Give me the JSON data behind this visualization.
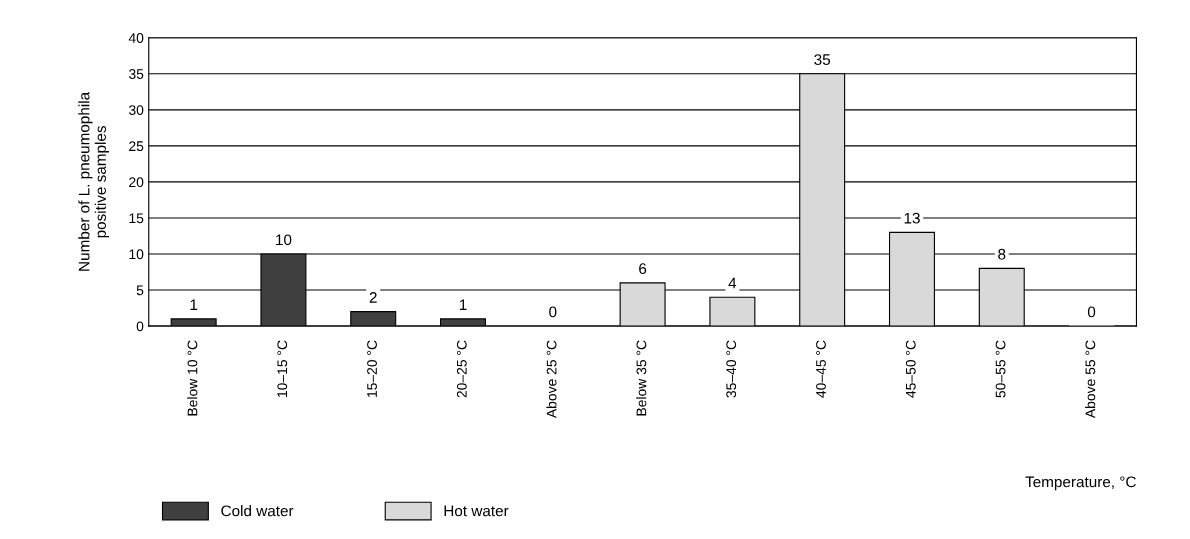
{
  "chart_data": {
    "type": "bar",
    "xlabel": "Temperature, °C",
    "ylabel": "Number of L. pneumophila\npositive samples",
    "categories": [
      "Below 10 °C",
      "10–15 °C",
      "15–20 °C",
      "20–25 °C",
      "Above 25 °C",
      "Below 35 °C",
      "35–40 °C",
      "40–45 °C",
      "45–50 °C",
      "50–55 °C",
      "Above 55 °C"
    ],
    "series": [
      {
        "name": "Cold water",
        "color": "#404040",
        "values": [
          1,
          10,
          2,
          1,
          0,
          null,
          null,
          null,
          null,
          null,
          null
        ]
      },
      {
        "name": "Hot water",
        "color": "#d9d9d9",
        "values": [
          null,
          null,
          null,
          null,
          null,
          6,
          4,
          35,
          13,
          8,
          0
        ]
      }
    ],
    "ylim": [
      0,
      40
    ],
    "yticks": [
      0,
      5,
      10,
      15,
      20,
      25,
      30,
      35,
      40
    ],
    "grid": "y",
    "legend": "bottom left",
    "data_labels": true
  }
}
